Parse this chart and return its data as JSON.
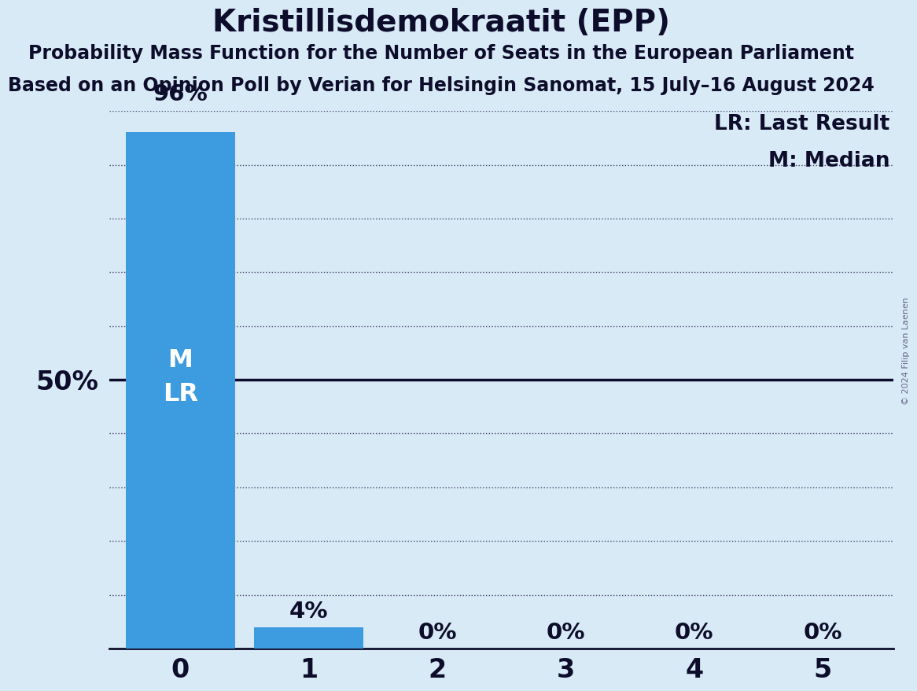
{
  "title": "Kristillisdemokraatit (EPP)",
  "subtitle1": "Probability Mass Function for the Number of Seats in the European Parliament",
  "subtitle2": "Based on an Opinion Poll by Verian for Helsingin Sanomat, 15 July–16 August 2024",
  "copyright": "© 2024 Filip van Laenen",
  "categories": [
    0,
    1,
    2,
    3,
    4,
    5
  ],
  "values": [
    0.96,
    0.04,
    0.0,
    0.0,
    0.0,
    0.0
  ],
  "bar_color": "#3d9be0",
  "background_color": "#d9eaf7",
  "median": 0,
  "last_result": 0,
  "legend_lr": "LR: Last Result",
  "legend_m": "M: Median",
  "ylabel_50": "50%",
  "ylim_max": 1.0,
  "title_fontsize": 28,
  "subtitle_fontsize": 17,
  "axis_label_fontsize": 24,
  "bar_label_fontsize": 21,
  "tick_fontsize": 24,
  "legend_fontsize": 19,
  "inside_label_fontsize": 23
}
